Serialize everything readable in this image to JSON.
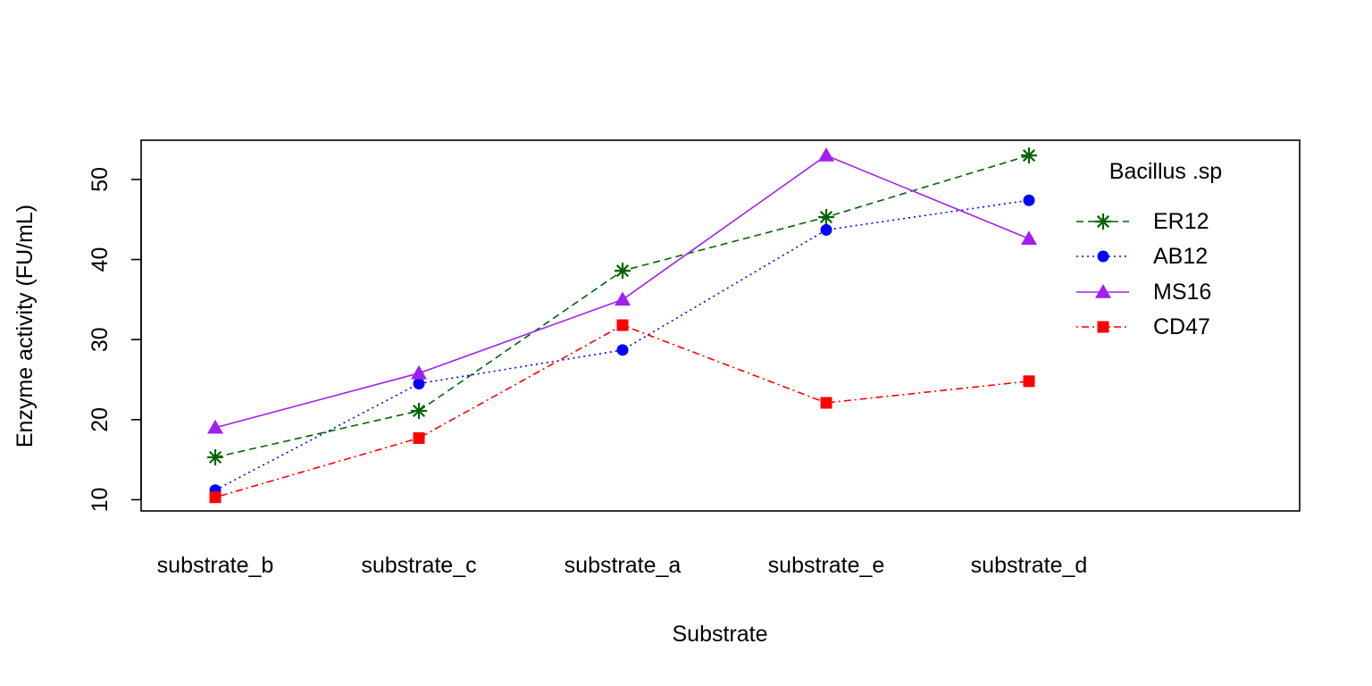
{
  "chart_data": {
    "type": "line",
    "title": "",
    "xlabel": "Substrate",
    "ylabel": "Enzyme activity (FU/mL)",
    "categories": [
      "substrate_b",
      "substrate_c",
      "substrate_a",
      "substrate_e",
      "substrate_d"
    ],
    "y_ticks": [
      10,
      20,
      30,
      40,
      50
    ],
    "ylim": [
      8.6,
      54.9
    ],
    "grid": false,
    "legend": {
      "title": "Bacillus .sp",
      "placement": "top-right"
    },
    "series": [
      {
        "name": "ER12",
        "values": [
          15.3,
          21.1,
          38.6,
          45.3,
          53.0
        ],
        "color": "#006400",
        "line": "dashed",
        "marker": "asterisk"
      },
      {
        "name": "AB12",
        "values": [
          11.2,
          24.5,
          28.7,
          43.7,
          47.4
        ],
        "color": "#0000FF",
        "line": "dotted",
        "marker": "circle"
      },
      {
        "name": "MS16",
        "values": [
          19.0,
          25.8,
          35.0,
          53.0,
          42.6
        ],
        "color": "#A020F0",
        "line": "solid",
        "marker": "triangle"
      },
      {
        "name": "CD47",
        "values": [
          10.3,
          17.7,
          31.8,
          22.1,
          24.8
        ],
        "color": "#FF0000",
        "line": "dotdash",
        "marker": "square"
      }
    ]
  }
}
